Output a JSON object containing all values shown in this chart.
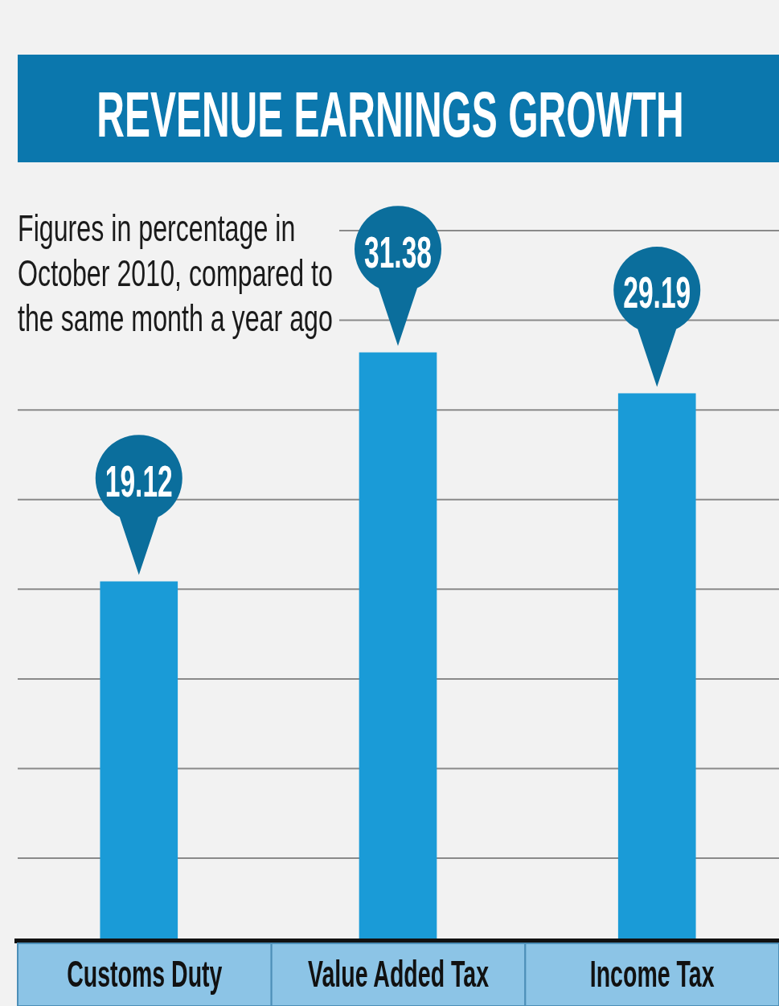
{
  "chart_data": {
    "type": "bar",
    "title": "REVENUE EARNINGS GROWTH",
    "subtitle": "Figures in percentage in October 2010, compared to the same month a year ago",
    "categories": [
      "Customs Duty",
      "Value Added Tax",
      "Income Tax"
    ],
    "values": [
      19.12,
      31.38,
      29.19
    ],
    "color": "#1a9bd7",
    "data_labels": true,
    "yticks": [
      {
        "value": 4.3,
        "label": null
      },
      {
        "value": 9.1,
        "label": null
      },
      {
        "value": 13.9,
        "label": null
      },
      {
        "value": 18.7,
        "label": null
      },
      {
        "value": 23.5,
        "label": null
      },
      {
        "value": 28.3,
        "label": null
      },
      {
        "value": 33.1,
        "label": null
      },
      {
        "value": 37.9,
        "label": null
      }
    ],
    "grid": "y",
    "tick_labels": "x"
  }
}
